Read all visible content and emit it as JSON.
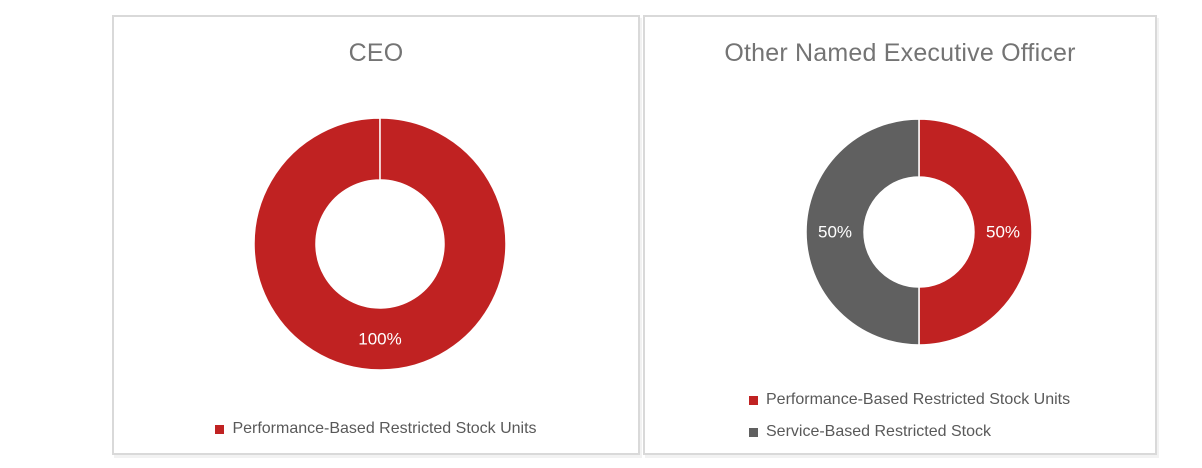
{
  "styles": {
    "accent_red": "#C02222",
    "slice_gray": "#606060",
    "title_color": "#747474",
    "legend_text_color": "#595959",
    "panel_border_color": "#D9D9D9",
    "data_label_color": "#FFFFFF"
  },
  "chart_data": [
    {
      "type": "pie",
      "subtype": "donut",
      "title": "CEO",
      "legend_position": "bottom-center",
      "data_labels": "percent inside, white",
      "slices": [
        {
          "label": "Performance-Based Restricted Stock Units",
          "value": 100,
          "percent_label": "100%",
          "color": "#C02222"
        }
      ]
    },
    {
      "type": "pie",
      "subtype": "donut",
      "title": "Other Named Executive Officer",
      "legend_position": "bottom-left",
      "data_labels": "percent inside, white",
      "slices": [
        {
          "label": "Performance-Based Restricted Stock Units",
          "value": 50,
          "percent_label": "50%",
          "color": "#C02222"
        },
        {
          "label": "Service-Based Restricted Stock",
          "value": 50,
          "percent_label": "50%",
          "color": "#606060"
        }
      ]
    }
  ]
}
